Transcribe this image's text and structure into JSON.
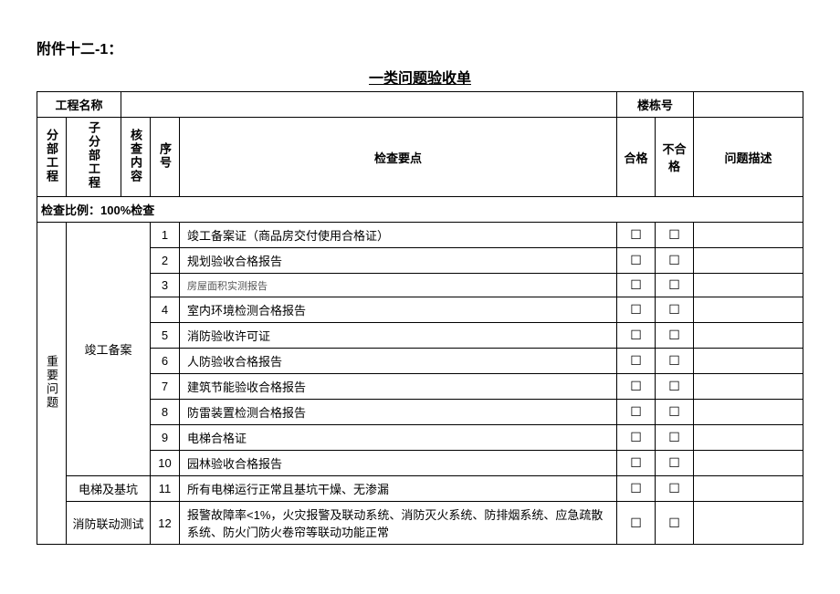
{
  "document": {
    "attachment_label": "附件十二-1：",
    "title": "一类问题验收单"
  },
  "header_row1": {
    "project_name_label": "工程名称",
    "building_no_label": "楼栋号"
  },
  "header_row2": {
    "section_label": "分部工程",
    "subsection_label": "子分部工程",
    "review_content_label": "核查内容",
    "seq_label": "序号",
    "checkpoint_label": "检查要点",
    "pass_label": "合格",
    "fail_label": "不合格",
    "desc_label": "问题描述"
  },
  "check_ratio_row": "检查比例：100%检查",
  "category1": {
    "label": "重要问题",
    "group1": {
      "label": "竣工备案",
      "rows": [
        {
          "seq": "1",
          "point": "竣工备案证（商品房交付使用合格证）"
        },
        {
          "seq": "2",
          "point": "规划验收合格报告"
        },
        {
          "seq": "3",
          "point": "房屋面积实测报告"
        },
        {
          "seq": "4",
          "point": "室内环境检测合格报告"
        },
        {
          "seq": "5",
          "point": "消防验收许可证"
        },
        {
          "seq": "6",
          "point": "人防验收合格报告"
        },
        {
          "seq": "7",
          "point": "建筑节能验收合格报告"
        },
        {
          "seq": "8",
          "point": "防雷装置检测合格报告"
        },
        {
          "seq": "9",
          "point": "电梯合格证"
        },
        {
          "seq": "10",
          "point": "园林验收合格报告"
        }
      ]
    },
    "group2": {
      "label": "电梯及基坑",
      "rows": [
        {
          "seq": "11",
          "point": "所有电梯运行正常且基坑干燥、无渗漏"
        }
      ]
    },
    "group3": {
      "label": "消防联动测试",
      "rows": [
        {
          "seq": "12",
          "point": "报警故障率<1%，火灾报警及联动系统、消防灭火系统、防排烟系统、应急疏散系统、防火门防火卷帘等联动功能正常"
        }
      ]
    }
  },
  "checkbox_char": "☐"
}
